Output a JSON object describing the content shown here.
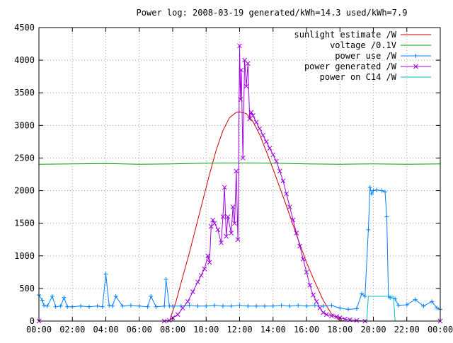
{
  "chart_data": {
    "type": "line",
    "title": "Power log: 2008-03-19 generated/kWh=14.3 used/kWh=7.9",
    "xlabel": "",
    "ylabel": "",
    "xlim": [
      0,
      24
    ],
    "ylim": [
      0,
      4500
    ],
    "grid": true,
    "legend_position": "top-right",
    "x_ticks": [
      "00:00",
      "02:00",
      "04:00",
      "06:00",
      "08:00",
      "10:00",
      "12:00",
      "14:00",
      "16:00",
      "18:00",
      "20:00",
      "22:00",
      "00:00"
    ],
    "y_ticks": [
      "0",
      "500",
      "1000",
      "1500",
      "2000",
      "2500",
      "3000",
      "3500",
      "4000",
      "4500"
    ],
    "series": [
      {
        "name": "sunlight estimate /W",
        "color": "#cc0000",
        "marker": "none",
        "x": [
          0,
          7.8,
          8.2,
          8.6,
          9.0,
          9.4,
          9.8,
          10.2,
          10.6,
          11.0,
          11.4,
          11.8,
          12.0,
          12.4,
          12.8,
          13.2,
          13.6,
          14.0,
          14.5,
          15.0,
          15.5,
          16.0,
          16.5,
          17.0,
          17.5,
          18.0,
          18.2,
          24
        ],
        "values": [
          0,
          0,
          300,
          680,
          1050,
          1450,
          1850,
          2250,
          2620,
          2920,
          3120,
          3200,
          3210,
          3180,
          3060,
          2860,
          2600,
          2330,
          1980,
          1620,
          1250,
          900,
          600,
          320,
          110,
          10,
          0,
          0
        ]
      },
      {
        "name": "voltage /0.1V",
        "color": "#00a000",
        "marker": "none",
        "x": [
          0,
          2,
          4,
          6,
          8,
          10,
          12,
          14,
          16,
          18,
          20,
          22,
          24
        ],
        "values": [
          2405,
          2410,
          2415,
          2405,
          2410,
          2420,
          2425,
          2420,
          2410,
          2405,
          2410,
          2405,
          2410
        ]
      },
      {
        "name": "power use /W",
        "color": "#0080ff",
        "marker": "plus",
        "x": [
          0.0,
          0.2,
          0.3,
          0.5,
          0.8,
          1.0,
          1.3,
          1.5,
          1.7,
          2.0,
          2.5,
          3.0,
          3.5,
          3.8,
          4.0,
          4.2,
          4.4,
          4.6,
          5.0,
          5.5,
          6.0,
          6.5,
          6.7,
          7.0,
          7.5,
          7.6,
          7.8,
          8.0,
          8.5,
          9.0,
          9.5,
          10.0,
          10.5,
          11.0,
          11.5,
          12.0,
          12.5,
          13.0,
          13.5,
          14.0,
          14.5,
          15.0,
          15.5,
          16.0,
          16.5,
          17.0,
          17.5,
          18.0,
          18.5,
          19.0,
          19.3,
          19.5,
          19.7,
          19.8,
          19.9,
          20.0,
          20.2,
          20.5,
          20.7,
          20.8,
          20.9,
          21.0,
          21.3,
          21.5,
          22.0,
          22.5,
          23.0,
          23.5,
          23.8,
          24.0
        ],
        "values": [
          400,
          320,
          240,
          230,
          380,
          220,
          230,
          360,
          220,
          220,
          230,
          220,
          230,
          220,
          720,
          240,
          230,
          380,
          230,
          240,
          230,
          220,
          380,
          220,
          230,
          640,
          230,
          230,
          230,
          240,
          230,
          230,
          240,
          230,
          230,
          240,
          230,
          230,
          230,
          230,
          240,
          230,
          240,
          230,
          240,
          230,
          240,
          200,
          180,
          190,
          420,
          380,
          1400,
          2050,
          1950,
          2000,
          2010,
          2000,
          1980,
          1600,
          380,
          360,
          340,
          240,
          250,
          330,
          230,
          300,
          200,
          180
        ]
      },
      {
        "name": "power generated /W",
        "color": "#a000e0",
        "marker": "cross",
        "x": [
          0,
          7.5,
          7.8,
          8.0,
          8.3,
          8.6,
          8.9,
          9.2,
          9.5,
          9.7,
          9.9,
          10.1,
          10.2,
          10.3,
          10.4,
          10.5,
          10.7,
          10.9,
          11.0,
          11.1,
          11.2,
          11.3,
          11.5,
          11.6,
          11.7,
          11.8,
          11.9,
          12.0,
          12.05,
          12.1,
          12.2,
          12.3,
          12.4,
          12.5,
          12.6,
          12.7,
          12.8,
          13.0,
          13.2,
          13.4,
          13.6,
          13.8,
          14.0,
          14.2,
          14.4,
          14.6,
          14.8,
          15.0,
          15.2,
          15.4,
          15.6,
          15.8,
          16.0,
          16.2,
          16.4,
          16.6,
          16.8,
          17.0,
          17.2,
          17.5,
          17.8,
          18.0,
          18.3,
          18.6,
          19.0,
          19.5,
          24
        ],
        "values": [
          0,
          0,
          10,
          50,
          100,
          200,
          300,
          450,
          600,
          700,
          800,
          1000,
          900,
          1450,
          1550,
          1500,
          1400,
          1200,
          1600,
          2050,
          1300,
          1600,
          1350,
          1750,
          1500,
          2300,
          1250,
          4220,
          3400,
          3850,
          2500,
          4000,
          3600,
          3950,
          3100,
          3200,
          3150,
          3050,
          2950,
          2850,
          2750,
          2650,
          2550,
          2450,
          2300,
          2150,
          1950,
          1750,
          1550,
          1350,
          1150,
          950,
          750,
          550,
          400,
          300,
          200,
          130,
          100,
          80,
          70,
          50,
          30,
          20,
          10,
          0,
          0
        ]
      },
      {
        "name": "power on C14 /W",
        "color": "#00c0c0",
        "marker": "none",
        "x": [
          0,
          19.6,
          19.7,
          20.0,
          21.2,
          21.3,
          24
        ],
        "values": [
          0,
          0,
          380,
          380,
          380,
          0,
          0
        ]
      }
    ]
  }
}
